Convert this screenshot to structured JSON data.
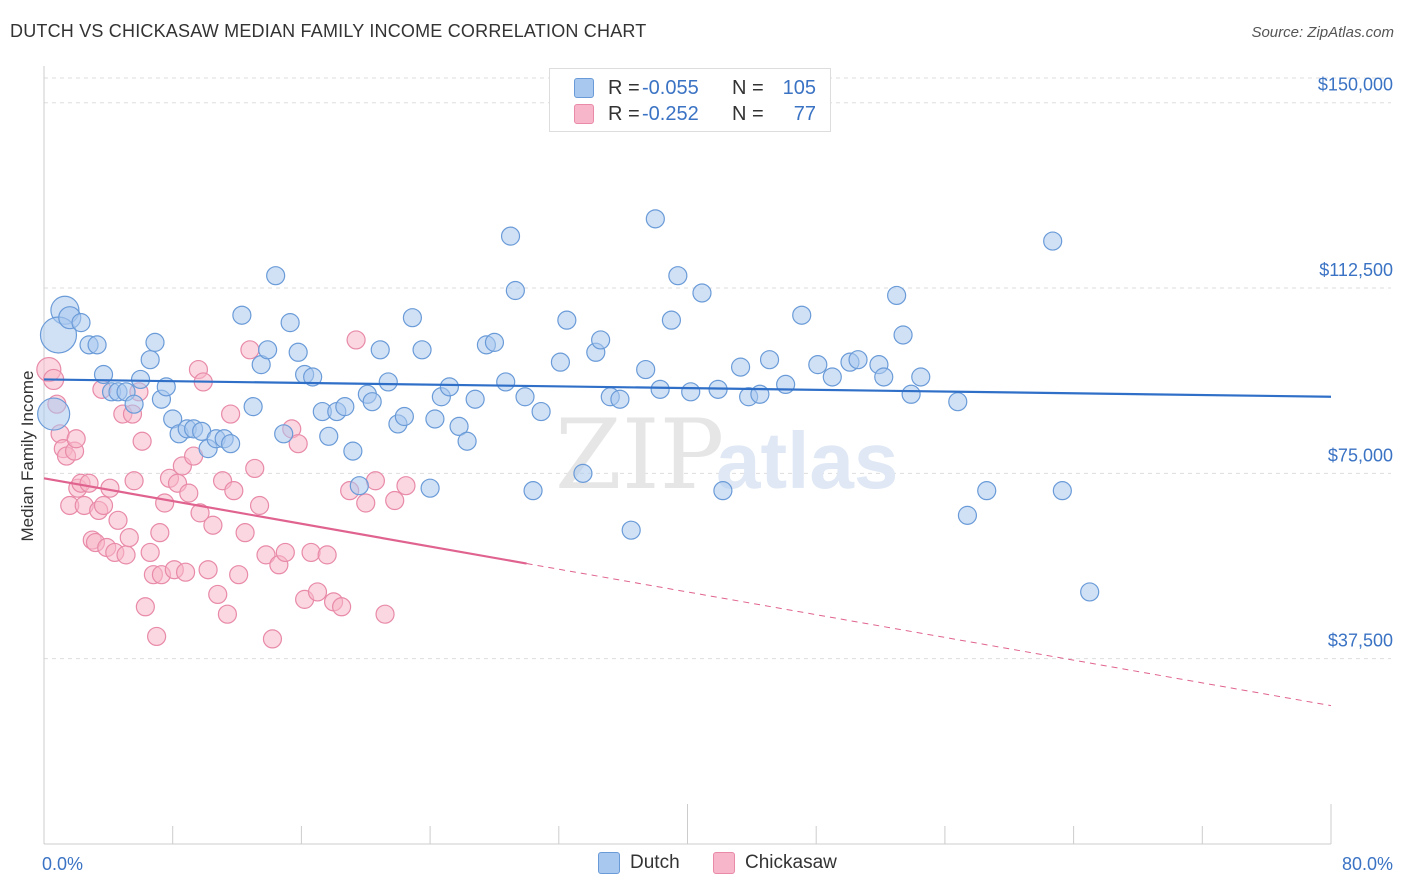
{
  "title": "DUTCH VS CHICKASAW MEDIAN FAMILY INCOME CORRELATION CHART",
  "source": "Source: ZipAtlas.com",
  "watermark": {
    "zip": "ZIP",
    "atlas": "atlas"
  },
  "legend_top": [
    {
      "swatch_color": "#a9c8ef",
      "r_label": "R =",
      "r_value": "-0.055",
      "n_label": "N =",
      "n_value": "105"
    },
    {
      "swatch_color": "#f7b6c9",
      "r_label": "R =",
      "r_value": "-0.252",
      "n_label": "N =",
      "n_value": "77"
    }
  ],
  "legend_bottom": [
    {
      "label": "Dutch",
      "color": "#a9c8ef"
    },
    {
      "label": "Chickasaw",
      "color": "#f7b6c9"
    }
  ],
  "colors": {
    "dutch_fill": "#a9c8ef",
    "dutch_stroke": "#6a9bd8",
    "dutch_line": "#2f6fc8",
    "chickasaw_fill": "#f7b6c9",
    "chickasaw_stroke": "#e88aa8",
    "chickasaw_line": "#e0638f",
    "tick_text": "#3b73c4",
    "grid": "#dddddd"
  },
  "chart_data": {
    "type": "scatter",
    "title": "DUTCH VS CHICKASAW MEDIAN FAMILY INCOME CORRELATION CHART",
    "xlabel": "",
    "ylabel": "Median Family Income",
    "xlim": [
      0,
      80
    ],
    "ylim": [
      0,
      155000
    ],
    "x_tick_labels": [
      {
        "value": 0,
        "label": "0.0%"
      },
      {
        "value": 80,
        "label": "80.0%"
      }
    ],
    "y_ticks": [
      {
        "value": 37500,
        "label": "$37,500"
      },
      {
        "value": 75000,
        "label": "$75,000"
      },
      {
        "value": 112500,
        "label": "$112,500"
      },
      {
        "value": 150000,
        "label": "$150,000"
      }
    ],
    "grid": "horizontal dashed",
    "series": [
      {
        "name": "Dutch",
        "trend": {
          "x": [
            0,
            80
          ],
          "y": [
            94000,
            90500
          ],
          "dashed_from": null
        },
        "points": [
          [
            1.3,
            108000,
            14
          ],
          [
            0.9,
            103000,
            18
          ],
          [
            1.6,
            106500,
            11
          ],
          [
            2.3,
            105500,
            9
          ],
          [
            2.8,
            101000,
            9
          ],
          [
            3.3,
            101000,
            9
          ],
          [
            3.7,
            95000,
            9
          ],
          [
            4.2,
            91500,
            9
          ],
          [
            4.6,
            91500,
            9
          ],
          [
            5.1,
            91500,
            9
          ],
          [
            5.6,
            89000,
            9
          ],
          [
            6.0,
            94000,
            9
          ],
          [
            6.6,
            98000,
            9
          ],
          [
            6.9,
            101500,
            9
          ],
          [
            7.3,
            90000,
            9
          ],
          [
            7.6,
            92500,
            9
          ],
          [
            8.0,
            86000,
            9
          ],
          [
            8.4,
            83000,
            9
          ],
          [
            8.9,
            84000,
            9
          ],
          [
            9.3,
            84000,
            9
          ],
          [
            9.8,
            83500,
            9
          ],
          [
            10.2,
            80000,
            9
          ],
          [
            10.7,
            82000,
            9
          ],
          [
            11.2,
            82000,
            9
          ],
          [
            11.6,
            81000,
            9
          ],
          [
            12.3,
            107000,
            9
          ],
          [
            13.0,
            88500,
            9
          ],
          [
            13.5,
            97000,
            9
          ],
          [
            13.9,
            100000,
            9
          ],
          [
            14.4,
            115000,
            9
          ],
          [
            14.9,
            83000,
            9
          ],
          [
            15.3,
            105500,
            9
          ],
          [
            15.8,
            99500,
            9
          ],
          [
            16.2,
            95000,
            9
          ],
          [
            16.7,
            94500,
            9
          ],
          [
            17.3,
            87500,
            9
          ],
          [
            17.7,
            82500,
            9
          ],
          [
            18.2,
            87500,
            9
          ],
          [
            18.7,
            88500,
            9
          ],
          [
            19.2,
            79500,
            9
          ],
          [
            19.6,
            72500,
            9
          ],
          [
            20.1,
            91000,
            9
          ],
          [
            20.4,
            89500,
            9
          ],
          [
            20.9,
            100000,
            9
          ],
          [
            21.4,
            93500,
            9
          ],
          [
            22.0,
            85000,
            9
          ],
          [
            22.4,
            86500,
            9
          ],
          [
            22.9,
            106500,
            9
          ],
          [
            23.5,
            100000,
            9
          ],
          [
            24.0,
            72000,
            9
          ],
          [
            24.3,
            86000,
            9
          ],
          [
            24.7,
            90500,
            9
          ],
          [
            25.2,
            92500,
            9
          ],
          [
            25.8,
            84500,
            9
          ],
          [
            26.3,
            81500,
            9
          ],
          [
            26.8,
            90000,
            9
          ],
          [
            27.5,
            101000,
            9
          ],
          [
            28.0,
            101500,
            9
          ],
          [
            28.7,
            93500,
            9
          ],
          [
            29.0,
            123000,
            9
          ],
          [
            29.3,
            112000,
            9
          ],
          [
            29.9,
            90500,
            9
          ],
          [
            30.4,
            71500,
            9
          ],
          [
            30.9,
            87500,
            9
          ],
          [
            32.1,
            97500,
            9
          ],
          [
            32.5,
            106000,
            9
          ],
          [
            33.5,
            75000,
            9
          ],
          [
            34.3,
            99500,
            9
          ],
          [
            34.6,
            102000,
            9
          ],
          [
            35.2,
            90500,
            9
          ],
          [
            35.8,
            90000,
            9
          ],
          [
            36.5,
            63500,
            9
          ],
          [
            37.4,
            96000,
            9
          ],
          [
            38.0,
            126500,
            9
          ],
          [
            38.3,
            92000,
            9
          ],
          [
            39.0,
            106000,
            9
          ],
          [
            39.4,
            115000,
            9
          ],
          [
            40.2,
            91500,
            9
          ],
          [
            40.9,
            111500,
            9
          ],
          [
            41.9,
            92000,
            9
          ],
          [
            42.2,
            71500,
            9
          ],
          [
            43.3,
            96500,
            9
          ],
          [
            43.8,
            90500,
            9
          ],
          [
            44.5,
            91000,
            9
          ],
          [
            45.1,
            98000,
            9
          ],
          [
            46.1,
            93000,
            9
          ],
          [
            47.1,
            107000,
            9
          ],
          [
            48.1,
            97000,
            9
          ],
          [
            49.0,
            94500,
            9
          ],
          [
            50.1,
            97500,
            9
          ],
          [
            50.6,
            98000,
            9
          ],
          [
            51.9,
            97000,
            9
          ],
          [
            52.2,
            94500,
            9
          ],
          [
            53.0,
            111000,
            9
          ],
          [
            53.4,
            103000,
            9
          ],
          [
            53.9,
            91000,
            9
          ],
          [
            54.5,
            94500,
            9
          ],
          [
            56.8,
            89500,
            9
          ],
          [
            57.4,
            66500,
            9
          ],
          [
            58.6,
            71500,
            9
          ],
          [
            62.7,
            122000,
            9
          ],
          [
            63.3,
            71500,
            9
          ],
          [
            65.0,
            51000,
            9
          ],
          [
            0.6,
            87000,
            16
          ]
        ]
      },
      {
        "name": "Chickasaw",
        "trend": {
          "x": [
            0,
            80
          ],
          "y": [
            74000,
            28000
          ],
          "dashed_from": 30
        },
        "points": [
          [
            0.3,
            96000,
            12
          ],
          [
            0.6,
            94000,
            10
          ],
          [
            0.8,
            89000,
            9
          ],
          [
            1.0,
            83000,
            9
          ],
          [
            1.2,
            80000,
            9
          ],
          [
            1.4,
            78500,
            9
          ],
          [
            1.6,
            68500,
            9
          ],
          [
            1.9,
            79500,
            9
          ],
          [
            2.1,
            72000,
            9
          ],
          [
            2.3,
            73000,
            9
          ],
          [
            2.5,
            68500,
            9
          ],
          [
            2.8,
            73000,
            9
          ],
          [
            3.0,
            61500,
            9
          ],
          [
            3.2,
            61000,
            9
          ],
          [
            3.4,
            67500,
            9
          ],
          [
            3.7,
            68500,
            9
          ],
          [
            3.9,
            60000,
            9
          ],
          [
            4.1,
            72000,
            9
          ],
          [
            4.4,
            59000,
            9
          ],
          [
            4.6,
            65500,
            9
          ],
          [
            4.9,
            87000,
            9
          ],
          [
            5.1,
            58500,
            9
          ],
          [
            5.3,
            62000,
            9
          ],
          [
            5.6,
            73500,
            9
          ],
          [
            5.9,
            91500,
            9
          ],
          [
            6.1,
            81500,
            9
          ],
          [
            6.3,
            48000,
            9
          ],
          [
            6.6,
            59000,
            9
          ],
          [
            6.8,
            54500,
            9
          ],
          [
            7.0,
            42000,
            9
          ],
          [
            7.3,
            54500,
            9
          ],
          [
            7.5,
            69000,
            9
          ],
          [
            7.8,
            74000,
            9
          ],
          [
            8.1,
            55500,
            9
          ],
          [
            8.3,
            73000,
            9
          ],
          [
            8.6,
            76500,
            9
          ],
          [
            8.8,
            55000,
            9
          ],
          [
            9.0,
            71000,
            9
          ],
          [
            9.3,
            78500,
            9
          ],
          [
            9.6,
            96000,
            9
          ],
          [
            9.9,
            93500,
            9
          ],
          [
            10.2,
            55500,
            9
          ],
          [
            10.5,
            64500,
            9
          ],
          [
            10.8,
            50500,
            9
          ],
          [
            11.1,
            73500,
            9
          ],
          [
            11.4,
            46500,
            9
          ],
          [
            11.8,
            71500,
            9
          ],
          [
            12.1,
            54500,
            9
          ],
          [
            12.5,
            63000,
            9
          ],
          [
            12.8,
            100000,
            9
          ],
          [
            13.1,
            76000,
            9
          ],
          [
            13.4,
            68500,
            9
          ],
          [
            13.8,
            58500,
            9
          ],
          [
            14.2,
            41500,
            9
          ],
          [
            14.6,
            56500,
            9
          ],
          [
            15.0,
            59000,
            9
          ],
          [
            15.4,
            84000,
            9
          ],
          [
            15.8,
            81000,
            9
          ],
          [
            16.2,
            49500,
            9
          ],
          [
            16.6,
            59000,
            9
          ],
          [
            17.0,
            51000,
            9
          ],
          [
            17.6,
            58500,
            9
          ],
          [
            18.0,
            49000,
            9
          ],
          [
            18.5,
            48000,
            9
          ],
          [
            19.0,
            71500,
            9
          ],
          [
            19.4,
            102000,
            9
          ],
          [
            20.0,
            69000,
            9
          ],
          [
            20.6,
            73500,
            9
          ],
          [
            21.2,
            46500,
            9
          ],
          [
            21.8,
            69500,
            9
          ],
          [
            22.5,
            72500,
            9
          ],
          [
            5.5,
            87000,
            9
          ],
          [
            2.0,
            82000,
            9
          ],
          [
            3.6,
            92000,
            9
          ],
          [
            7.2,
            63000,
            9
          ],
          [
            9.7,
            67000,
            9
          ],
          [
            11.6,
            87000,
            9
          ]
        ]
      }
    ]
  }
}
